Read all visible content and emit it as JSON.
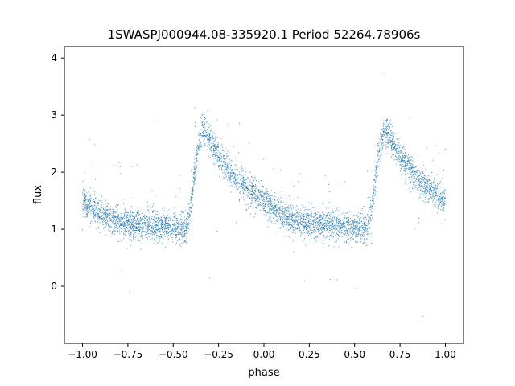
{
  "chart_data": {
    "type": "scatter",
    "title": "1SWASPJ000944.08-335920.1 Period 52264.78906s",
    "xlabel": "phase",
    "ylabel": "flux",
    "xlim": [
      -1.1,
      1.1
    ],
    "ylim": [
      -1.0,
      4.2
    ],
    "xticks": [
      "−1.00",
      "−0.75",
      "−0.50",
      "−0.25",
      "0.00",
      "0.25",
      "0.50",
      "0.75",
      "1.00"
    ],
    "xtick_values": [
      -1.0,
      -0.75,
      -0.5,
      -0.25,
      0.0,
      0.25,
      0.5,
      0.75,
      1.0
    ],
    "yticks": [
      "0",
      "1",
      "2",
      "3",
      "4"
    ],
    "ytick_values": [
      0,
      1,
      2,
      3,
      4
    ],
    "grid": false,
    "marker_color": "#1f77b4",
    "series": [
      {
        "light_curve_phase_flux": [
          [
            0.0,
            1.5
          ],
          [
            0.05,
            1.38
          ],
          [
            0.1,
            1.28
          ],
          [
            0.15,
            1.2
          ],
          [
            0.2,
            1.13
          ],
          [
            0.25,
            1.1
          ],
          [
            0.3,
            1.08
          ],
          [
            0.35,
            1.07
          ],
          [
            0.4,
            1.06
          ],
          [
            0.45,
            1.05
          ],
          [
            0.5,
            1.03
          ],
          [
            0.55,
            1.0
          ],
          [
            0.57,
            0.98
          ],
          [
            0.6,
            1.5
          ],
          [
            0.63,
            2.3
          ],
          [
            0.66,
            2.75
          ],
          [
            0.68,
            2.7
          ],
          [
            0.7,
            2.55
          ],
          [
            0.75,
            2.3
          ],
          [
            0.8,
            2.05
          ],
          [
            0.85,
            1.88
          ],
          [
            0.9,
            1.75
          ],
          [
            0.95,
            1.63
          ],
          [
            1.0,
            1.5
          ]
        ],
        "phase_range": [
          -1.0,
          1.0
        ]
      }
    ]
  }
}
